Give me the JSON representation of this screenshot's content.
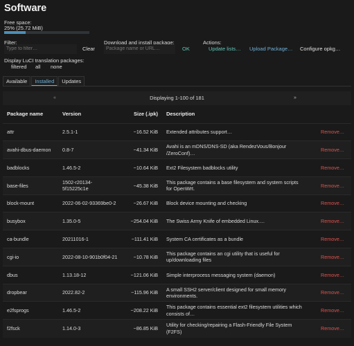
{
  "page": {
    "title": "Software"
  },
  "free_space": {
    "label": "Free space:",
    "value": "25% (25.72 MiB)",
    "percent": 25
  },
  "filter": {
    "label": "Filter:",
    "placeholder": "Type to filter…",
    "clear_label": "Clear"
  },
  "download": {
    "label": "Download and install package:",
    "placeholder": "Package name or URL…",
    "ok_label": "OK"
  },
  "actions": {
    "label": "Actions:",
    "update_lists": "Update lists…",
    "upload_package": "Upload Package…",
    "configure": "Configure opkg…"
  },
  "translations": {
    "label": "Display LuCI translation packages:",
    "filtered": "filtered",
    "all": "all",
    "none": "none"
  },
  "tabs": [
    {
      "label": "Available"
    },
    {
      "label": "Installed",
      "active": true
    },
    {
      "label": "Updates"
    }
  ],
  "pager": {
    "prev": "«",
    "info": "Displaying 1-100 of 181",
    "next": "»"
  },
  "table": {
    "headers": {
      "name": "Package name",
      "version": "Version",
      "size": "Size (.ipk)",
      "description": "Description"
    },
    "rows": [
      {
        "name": "attr",
        "version": "2.5.1-1",
        "size": "~16.52 KiB",
        "description": "Extended attributes support…",
        "action": "Remove…"
      },
      {
        "name": "avahi-dbus-daemon",
        "version": "0.8-7",
        "size": "~41.34 KiB",
        "description": "Avahi is an mDNS/DNS-SD (aka RendezVous/Bonjour /ZeroConf)…",
        "action": "Remove…"
      },
      {
        "name": "badblocks",
        "version": "1.46.5-2",
        "size": "~10.64 KiB",
        "description": "Ext2 Filesystem badblocks utility",
        "action": "Remove…"
      },
      {
        "name": "base-files",
        "version": "1502-r20134-5f15225c1e",
        "size": "~45.38 KiB",
        "description": "This package contains a base filesystem and system scripts for OpenWrt.",
        "action": "Remove…"
      },
      {
        "name": "block-mount",
        "version": "2022-06-02-93369be0-2",
        "size": "~26.67 KiB",
        "description": "Block device mounting and checking",
        "action": "Remove…"
      },
      {
        "name": "busybox",
        "version": "1.35.0-5",
        "size": "~254.04 KiB",
        "description": "The Swiss Army Knife of embedded Linux.…",
        "action": "Remove…"
      },
      {
        "name": "ca-bundle",
        "version": "20211016-1",
        "size": "~111.41 KiB",
        "description": "System CA certificates as a bundle",
        "action": "Remove…"
      },
      {
        "name": "cgi-io",
        "version": "2022-08-10-901b0f04-21",
        "size": "~10.78 KiB",
        "description": "This package contains an cgi utility that is useful for up/downloading files",
        "action": "Remove…"
      },
      {
        "name": "dbus",
        "version": "1.13.18-12",
        "size": "~121.06 KiB",
        "description": "Simple interprocess messaging system (daemon)",
        "action": "Remove…"
      },
      {
        "name": "dropbear",
        "version": "2022.82-2",
        "size": "~115.96 KiB",
        "description": "A small SSH2 server/client designed for small memory environments.",
        "action": "Remove…"
      },
      {
        "name": "e2fsprogs",
        "version": "1.46.5-2",
        "size": "~208.22 KiB",
        "description": "This package contains essential ext2 filesystem utilities which consists of…",
        "action": "Remove…"
      },
      {
        "name": "f2fsck",
        "version": "1.14.0-3",
        "size": "~86.85 KiB",
        "description": "Utility for checking/repairing a Flash-Friendly File System (F2FS)",
        "action": "Remove…"
      }
    ]
  }
}
